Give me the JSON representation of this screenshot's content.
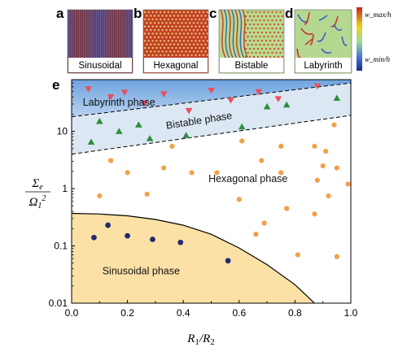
{
  "thumbnails": [
    {
      "letter": "a",
      "label": "Sinusoidal",
      "pattern": "stripes"
    },
    {
      "letter": "b",
      "label": "Hexagonal",
      "pattern": "hex-dots"
    },
    {
      "letter": "c",
      "label": "Bistable",
      "pattern": "mixed"
    },
    {
      "letter": "d",
      "label": "Labyrinth",
      "pattern": "labyrinth"
    }
  ],
  "colorbar": {
    "top_label": "w_max/h",
    "bottom_label": "w_min/h",
    "colors": [
      "#c0281e",
      "#f0d020",
      "#9fd8a0",
      "#3b6fd0",
      "#1d2f8f"
    ]
  },
  "chart_data": {
    "type": "scatter",
    "panel_letter": "e",
    "xlabel": "R1/R2",
    "ylabel": "Σe/Ω1²",
    "xlim": [
      0.0,
      1.0
    ],
    "ylim": [
      0.01,
      80
    ],
    "yscale": "log",
    "xticks": [
      "0.0",
      "0.2",
      "0.4",
      "0.6",
      "0.8",
      "1.0"
    ],
    "yticks": [
      "0.01",
      "0.1",
      "1",
      "10"
    ],
    "grid": false,
    "legend": "none",
    "regions": [
      {
        "name": "Labyrinth phase",
        "color": "#8fb8e8"
      },
      {
        "name": "Bistable phase",
        "color": "#dbe8f4"
      },
      {
        "name": "Hexagonal phase",
        "color": "#ffffff"
      },
      {
        "name": "Sinusoidal phase",
        "color": "#fbe1a6"
      }
    ],
    "boundaries": {
      "labyrinth_bistable": [
        [
          0.0,
          18
        ],
        [
          1.0,
          70
        ]
      ],
      "bistable_hexagonal": [
        [
          0.0,
          4.0
        ],
        [
          1.0,
          19
        ]
      ],
      "sinusoidal_curve": [
        [
          0.0,
          0.37
        ],
        [
          0.1,
          0.36
        ],
        [
          0.2,
          0.335
        ],
        [
          0.3,
          0.29
        ],
        [
          0.4,
          0.23
        ],
        [
          0.5,
          0.16
        ],
        [
          0.6,
          0.092
        ],
        [
          0.7,
          0.047
        ],
        [
          0.8,
          0.021
        ],
        [
          0.87,
          0.01
        ]
      ]
    },
    "series": [
      {
        "name": "Labyrinth",
        "marker": "triangle-down",
        "color": "#e8505a",
        "points": [
          [
            0.06,
            55
          ],
          [
            0.14,
            40
          ],
          [
            0.19,
            48
          ],
          [
            0.26,
            31
          ],
          [
            0.33,
            45
          ],
          [
            0.42,
            23
          ],
          [
            0.5,
            52
          ],
          [
            0.57,
            35
          ],
          [
            0.67,
            49
          ],
          [
            0.74,
            37
          ],
          [
            0.88,
            62
          ]
        ]
      },
      {
        "name": "Bistable",
        "marker": "triangle-up",
        "color": "#2e8f3a",
        "points": [
          [
            0.07,
            6.5
          ],
          [
            0.1,
            15
          ],
          [
            0.17,
            10
          ],
          [
            0.24,
            13
          ],
          [
            0.28,
            7.5
          ],
          [
            0.41,
            8.5
          ],
          [
            0.61,
            12
          ],
          [
            0.7,
            27
          ],
          [
            0.77,
            29
          ],
          [
            0.95,
            38
          ]
        ]
      },
      {
        "name": "Hexagonal",
        "marker": "hexagon",
        "color": "#f2a048",
        "points": [
          [
            0.1,
            0.75
          ],
          [
            0.14,
            3.1
          ],
          [
            0.2,
            1.9
          ],
          [
            0.27,
            0.8
          ],
          [
            0.33,
            2.3
          ],
          [
            0.36,
            5.5
          ],
          [
            0.43,
            1.9
          ],
          [
            0.52,
            1.9
          ],
          [
            0.61,
            6.8
          ],
          [
            0.6,
            0.65
          ],
          [
            0.66,
            0.16
          ],
          [
            0.68,
            3.1
          ],
          [
            0.69,
            0.25
          ],
          [
            0.75,
            5.5
          ],
          [
            0.75,
            1.9
          ],
          [
            0.77,
            0.45
          ],
          [
            0.81,
            0.07
          ],
          [
            0.87,
            0.36
          ],
          [
            0.87,
            5.5
          ],
          [
            0.88,
            1.4
          ],
          [
            0.9,
            2.5
          ],
          [
            0.91,
            4.5
          ],
          [
            0.92,
            0.75
          ],
          [
            0.94,
            13
          ],
          [
            0.95,
            2.3
          ],
          [
            0.95,
            0.065
          ],
          [
            0.99,
            1.2
          ]
        ]
      },
      {
        "name": "Sinusoidal",
        "marker": "circle",
        "color": "#252a6f",
        "points": [
          [
            0.08,
            0.14
          ],
          [
            0.13,
            0.23
          ],
          [
            0.2,
            0.15
          ],
          [
            0.29,
            0.13
          ],
          [
            0.39,
            0.115
          ],
          [
            0.56,
            0.055
          ]
        ]
      }
    ],
    "region_labels": [
      {
        "text": "Labyrinth phase",
        "x": 0.04,
        "y": 28
      },
      {
        "text": "Bistable phase",
        "x": 0.34,
        "y": 11
      },
      {
        "text": "Hexagonal phase",
        "x": 0.49,
        "y": 1.3
      },
      {
        "text": "Sinusoidal phase",
        "x": 0.11,
        "y": 0.032
      }
    ]
  }
}
